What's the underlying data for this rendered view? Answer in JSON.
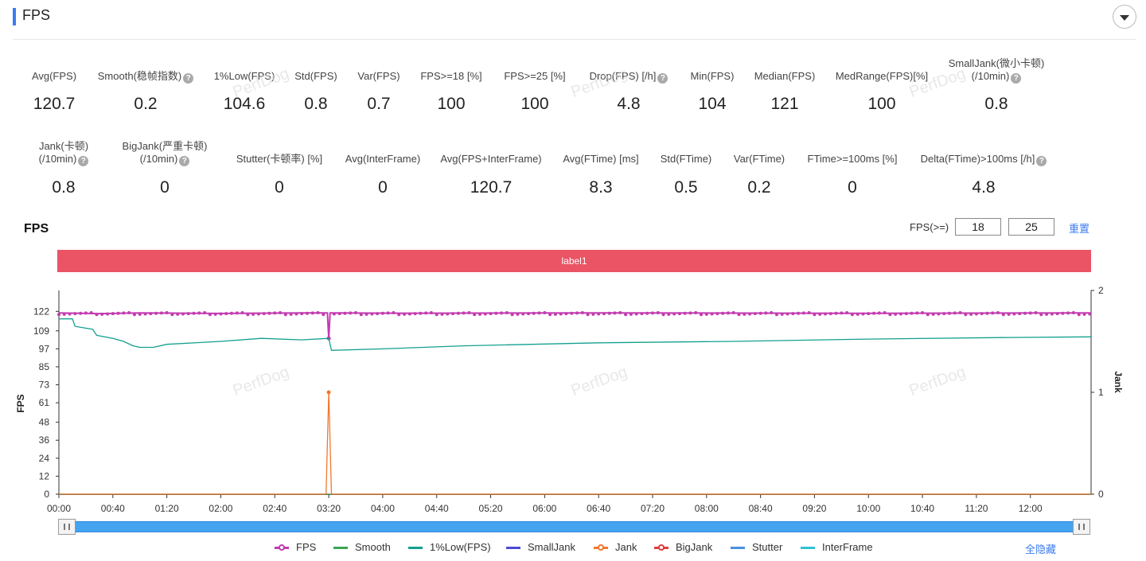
{
  "header": {
    "title": "FPS"
  },
  "metrics_row1": [
    {
      "label": "Avg(FPS)",
      "value": "120.7",
      "help": false
    },
    {
      "label": "Smooth(稳帧指数)",
      "value": "0.2",
      "help": true
    },
    {
      "label": "1%Low(FPS)",
      "value": "104.6",
      "help": false
    },
    {
      "label": "Std(FPS)",
      "value": "0.8",
      "help": false
    },
    {
      "label": "Var(FPS)",
      "value": "0.7",
      "help": false
    },
    {
      "label": "FPS>=18 [%]",
      "value": "100",
      "help": false
    },
    {
      "label": "FPS>=25 [%]",
      "value": "100",
      "help": false
    },
    {
      "label": "Drop(FPS) [/h]",
      "value": "4.8",
      "help": true
    },
    {
      "label": "Min(FPS)",
      "value": "104",
      "help": false
    },
    {
      "label": "Median(FPS)",
      "value": "121",
      "help": false
    },
    {
      "label": "MedRange(FPS)[%]",
      "value": "100",
      "help": false
    },
    {
      "label": "SmallJank(微小卡顿)",
      "label2": "(/10min)",
      "value": "0.8",
      "help": true
    }
  ],
  "metrics_row2": [
    {
      "label": "Jank(卡顿)",
      "label2": "(/10min)",
      "value": "0.8",
      "help": true
    },
    {
      "label": "BigJank(严重卡顿)",
      "label2": "(/10min)",
      "value": "0",
      "help": true
    },
    {
      "label": "Stutter(卡顿率) [%]",
      "value": "0",
      "help": false
    },
    {
      "label": "Avg(InterFrame)",
      "value": "0",
      "help": false
    },
    {
      "label": "Avg(FPS+InterFrame)",
      "value": "120.7",
      "help": false
    },
    {
      "label": "Avg(FTime) [ms]",
      "value": "8.3",
      "help": false
    },
    {
      "label": "Std(FTime)",
      "value": "0.5",
      "help": false
    },
    {
      "label": "Var(FTime)",
      "value": "0.2",
      "help": false
    },
    {
      "label": "FTime>=100ms [%]",
      "value": "0",
      "help": false
    },
    {
      "label": "Delta(FTime)>100ms [/h]",
      "value": "4.8",
      "help": true
    }
  ],
  "chart_panel": {
    "title": "FPS",
    "filter_label": "FPS(>=)",
    "filter_value_1": "18",
    "filter_value_2": "25",
    "reset_label": "重置",
    "band_label": "label1",
    "hide_all_label": "全隐藏",
    "watermark": "PerfDog"
  },
  "chart_data": {
    "type": "line",
    "ylabel": "FPS",
    "y2label": "Jank",
    "ylim": [
      0,
      128
    ],
    "y_ticks": [
      0,
      12,
      24,
      36,
      48,
      61,
      73,
      85,
      97,
      109,
      122
    ],
    "y2_ticks": [
      0,
      1,
      2
    ],
    "x_ticks": [
      "00:00",
      "00:40",
      "01:20",
      "02:00",
      "02:40",
      "03:20",
      "04:00",
      "04:40",
      "05:20",
      "06:00",
      "06:40",
      "07:20",
      "08:00",
      "08:40",
      "09:20",
      "10:00",
      "10:40",
      "11:20",
      "12:00"
    ],
    "x_range_seconds": [
      0,
      765
    ],
    "series": [
      {
        "name": "FPS",
        "color": "#c23bb0",
        "marker": true,
        "points": [
          [
            0,
            121
          ],
          [
            30,
            120.5
          ],
          [
            60,
            121
          ],
          [
            120,
            120.6
          ],
          [
            180,
            121
          ],
          [
            199,
            121
          ],
          [
            200,
            104
          ],
          [
            201,
            121
          ],
          [
            260,
            120.8
          ],
          [
            400,
            121
          ],
          [
            600,
            120.7
          ],
          [
            765,
            121
          ]
        ]
      },
      {
        "name": "Smooth",
        "color": "#3aa653",
        "points": [
          [
            0,
            0
          ],
          [
            765,
            0
          ]
        ]
      },
      {
        "name": "1%Low(FPS)",
        "color": "#13a08f",
        "points": [
          [
            0,
            117
          ],
          [
            10,
            117
          ],
          [
            12,
            112
          ],
          [
            25,
            110
          ],
          [
            28,
            106
          ],
          [
            40,
            104
          ],
          [
            48,
            102
          ],
          [
            55,
            99
          ],
          [
            60,
            98
          ],
          [
            70,
            98
          ],
          [
            80,
            100
          ],
          [
            120,
            102
          ],
          [
            150,
            104
          ],
          [
            180,
            103
          ],
          [
            200,
            104
          ],
          [
            202,
            96
          ],
          [
            240,
            97
          ],
          [
            300,
            99
          ],
          [
            400,
            101
          ],
          [
            500,
            102
          ],
          [
            600,
            103.5
          ],
          [
            700,
            104.5
          ],
          [
            765,
            105
          ]
        ]
      },
      {
        "name": "SmallJank",
        "color": "#4b4bd6",
        "points": []
      },
      {
        "name": "Jank",
        "color": "#f0782d",
        "axis": "y2",
        "points": [
          [
            0,
            0
          ],
          [
            198,
            0
          ],
          [
            200,
            1
          ],
          [
            202,
            0
          ],
          [
            765,
            0
          ]
        ]
      },
      {
        "name": "BigJank",
        "color": "#e33b3b",
        "points": []
      },
      {
        "name": "Stutter",
        "color": "#4a90e2",
        "points": []
      },
      {
        "name": "InterFrame",
        "color": "#2ec4d6",
        "points": []
      }
    ]
  }
}
